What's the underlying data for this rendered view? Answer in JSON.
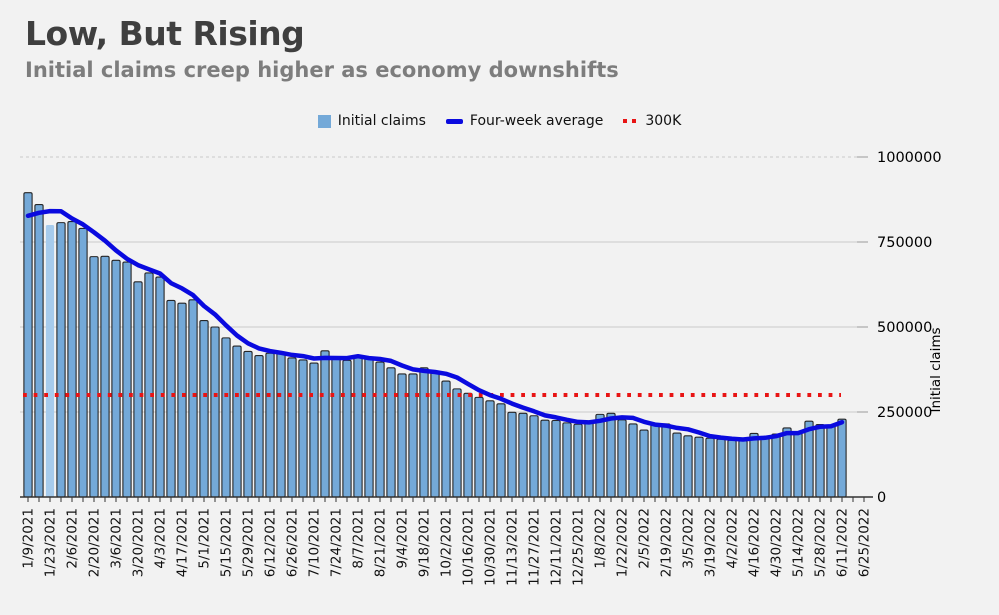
{
  "header": {
    "title": "Low, But Rising",
    "subtitle": "Initial claims creep higher as economy downshifts"
  },
  "legend": {
    "items": [
      {
        "label": "Initial claims",
        "swatch": "square",
        "color": "#74a9d8"
      },
      {
        "label": "Four-week average",
        "swatch": "line",
        "color": "#0a0adf"
      },
      {
        "label": "300K",
        "swatch": "dotted-line",
        "color": "#e81414"
      }
    ]
  },
  "chart_data": {
    "type": "bar",
    "title": "Low, But Rising",
    "subtitle": "Initial claims creep higher as economy downshifts",
    "xlabel": "",
    "ylabel": "Initial claims",
    "ylim": [
      0,
      1000000
    ],
    "y_ticks": [
      0,
      250000,
      500000,
      750000,
      1000000
    ],
    "grid": true,
    "legend_position": "top",
    "highlighted_bar_index": 2,
    "highlight_color": "#a6cbec",
    "background_color": "#f2f2f2",
    "reference_line": {
      "label": "300K",
      "value": 300000,
      "color": "#e81414"
    },
    "x": [
      "1/9/2021",
      "1/16/2021",
      "1/23/2021",
      "1/30/2021",
      "2/6/2021",
      "2/13/2021",
      "2/20/2021",
      "2/27/2021",
      "3/6/2021",
      "3/13/2021",
      "3/20/2021",
      "3/27/2021",
      "4/3/2021",
      "4/10/2021",
      "4/17/2021",
      "4/24/2021",
      "5/1/2021",
      "5/8/2021",
      "5/15/2021",
      "5/22/2021",
      "5/29/2021",
      "6/5/2021",
      "6/12/2021",
      "6/19/2021",
      "6/26/2021",
      "7/3/2021",
      "7/10/2021",
      "7/17/2021",
      "7/24/2021",
      "7/31/2021",
      "8/7/2021",
      "8/14/2021",
      "8/21/2021",
      "8/28/2021",
      "9/4/2021",
      "9/11/2021",
      "9/18/2021",
      "9/25/2021",
      "10/2/2021",
      "10/9/2021",
      "10/16/2021",
      "10/23/2021",
      "10/30/2021",
      "11/6/2021",
      "11/13/2021",
      "11/20/2021",
      "11/27/2021",
      "12/4/2021",
      "12/11/2021",
      "12/18/2021",
      "12/25/2021",
      "1/1/2022",
      "1/8/2022",
      "1/15/2022",
      "1/22/2022",
      "1/29/2022",
      "2/5/2022",
      "2/12/2022",
      "2/19/2022",
      "2/26/2022",
      "3/5/2022",
      "3/12/2022",
      "3/19/2022",
      "3/26/2022",
      "4/2/2022",
      "4/9/2022",
      "4/16/2022",
      "4/23/2022",
      "4/30/2022",
      "5/7/2022",
      "5/14/2022",
      "5/21/2022",
      "5/28/2022",
      "6/4/2022",
      "6/11/2022"
    ],
    "x_tick_labels": [
      "1/9/2021",
      "1/23/2021",
      "2/6/2021",
      "2/20/2021",
      "3/6/2021",
      "3/20/2021",
      "4/3/2021",
      "4/17/2021",
      "5/1/2021",
      "5/15/2021",
      "5/29/2021",
      "6/12/2021",
      "6/26/2021",
      "7/10/2021",
      "7/24/2021",
      "8/7/2021",
      "8/21/2021",
      "9/4/2021",
      "9/18/2021",
      "10/2/2021",
      "10/16/2021",
      "10/30/2021",
      "11/13/2021",
      "11/27/2021",
      "12/11/2021",
      "12/25/2021",
      "1/8/2022",
      "1/22/2022",
      "2/5/2022",
      "2/19/2022",
      "3/5/2022",
      "3/19/2022",
      "4/2/2022",
      "4/16/2022",
      "4/30/2022",
      "5/14/2022",
      "5/28/2022",
      "6/11/2022",
      "6/25/2022"
    ],
    "series": [
      {
        "name": "Initial claims",
        "type": "bar",
        "color": "#74a9d8",
        "values": [
          895000,
          860000,
          800000,
          807000,
          810000,
          790000,
          707000,
          708000,
          696000,
          691000,
          633000,
          659000,
          647000,
          578000,
          570000,
          580000,
          519000,
          500000,
          468000,
          444000,
          428000,
          416000,
          423000,
          423000,
          409000,
          403000,
          394000,
          430000,
          408000,
          402000,
          416000,
          408000,
          397000,
          380000,
          362000,
          362000,
          380000,
          367000,
          341000,
          318000,
          305000,
          293000,
          283000,
          274000,
          249000,
          246000,
          239000,
          226000,
          225000,
          218000,
          214000,
          221000,
          243000,
          246000,
          227000,
          215000,
          197000,
          213000,
          215000,
          188000,
          180000,
          176000,
          173000,
          170000,
          167000,
          166000,
          187000,
          177000,
          185000,
          203000,
          187000,
          223000,
          213000,
          210000,
          229000
        ]
      },
      {
        "name": "Four-week average",
        "type": "line",
        "color": "#0a0adf",
        "values": [
          827000,
          836000,
          841000,
          840500,
          819250,
          801750,
          778500,
          753750,
          725250,
          700500,
          682000,
          669750,
          657500,
          629250,
          613500,
          593750,
          561750,
          537000,
          505000,
          475000,
          452000,
          437000,
          429000,
          424000,
          418000,
          414500,
          407250,
          409000,
          408750,
          408500,
          414000,
          408500,
          405750,
          400250,
          386750,
          375250,
          371000,
          367750,
          362500,
          351500,
          332750,
          314250,
          299750,
          288750,
          274750,
          263000,
          252000,
          240000,
          234000,
          227000,
          220750,
          219500,
          224000,
          231000,
          234250,
          232750,
          221250,
          213000,
          210000,
          203250,
          199000,
          189750,
          179250,
          174750,
          171500,
          169000,
          172500,
          174250,
          178750,
          188000,
          188000,
          199500,
          206500,
          208250,
          220000
        ]
      },
      {
        "name": "300K",
        "type": "reference-line",
        "color": "#e81414",
        "value": 300000
      }
    ]
  }
}
